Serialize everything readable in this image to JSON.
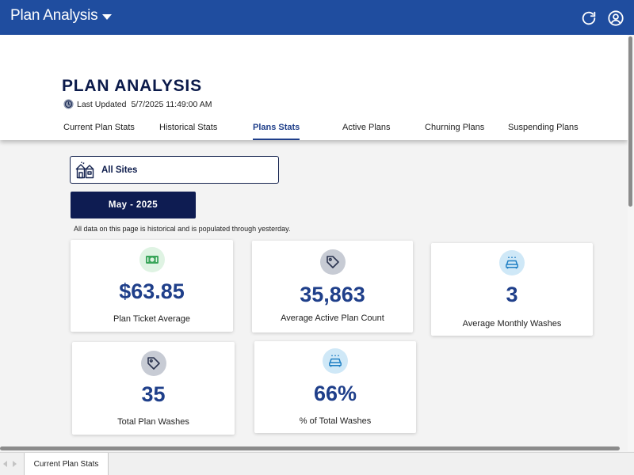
{
  "appbar": {
    "title": "Plan Analysis",
    "icons": {
      "refresh": "refresh-icon",
      "account": "account-icon"
    }
  },
  "header": {
    "page_title": "PLAN ANALYSIS",
    "last_updated_label": "Last Updated",
    "last_updated_value": "5/7/2025 11:49:00 AM",
    "tabs": [
      {
        "label": "Current Plan Stats",
        "active": false
      },
      {
        "label": "Historical Stats",
        "active": false
      },
      {
        "label": "Plans Stats",
        "active": true
      },
      {
        "label": "Active Plans",
        "active": false
      },
      {
        "label": "Churning Plans",
        "active": false
      },
      {
        "label": "Suspending Plans",
        "active": false
      }
    ]
  },
  "filters": {
    "site_label": "All Sites",
    "month_label": "May - 2025"
  },
  "note": "All data on this page is historical and is populated through yesterday.",
  "cards": [
    {
      "value": "$63.85",
      "label": "Plan Ticket Average",
      "icon": "money-icon"
    },
    {
      "value": "35,863",
      "label": "Average Active Plan Count",
      "icon": "tag-icon"
    },
    {
      "value": "3",
      "label": "Average Monthly Washes",
      "icon": "car-wash-icon"
    },
    {
      "value": "35",
      "label": "Total Plan Washes",
      "icon": "tag-icon"
    },
    {
      "value": "66%",
      "label": "% of Total Washes",
      "icon": "car-wash-icon"
    }
  ],
  "sheet_tabs": [
    {
      "label": "Current Plan Stats"
    }
  ],
  "colors": {
    "appbar": "#1f4d9f",
    "title_navy": "#0b1a4a",
    "value_blue": "#1f3f8a",
    "month_button": "#0e1c52"
  }
}
